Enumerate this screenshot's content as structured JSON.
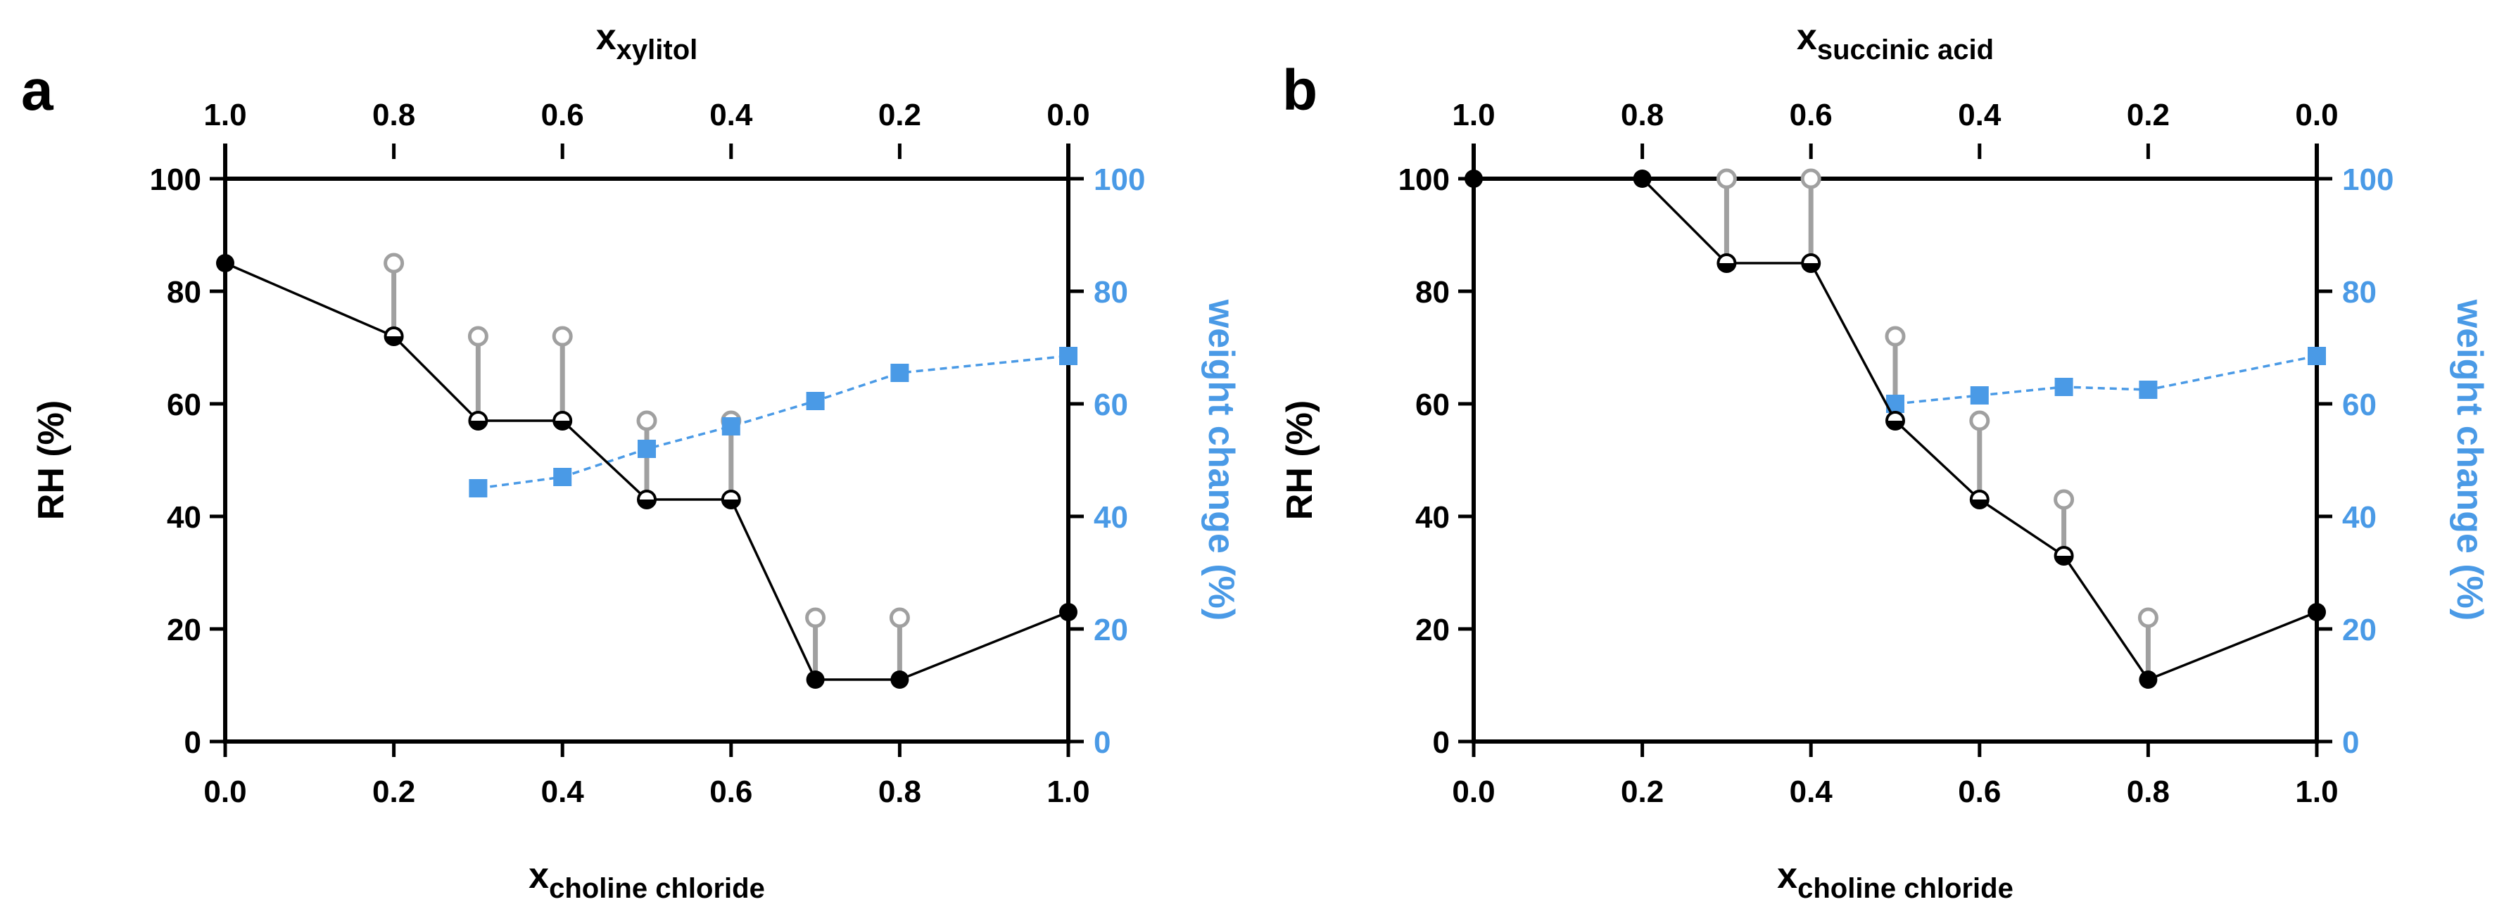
{
  "colors": {
    "black": "#000000",
    "blue": "#4a9ae6",
    "gray": "#a0a0a0"
  },
  "chart_data": [
    {
      "type": "line",
      "panel_label": "a",
      "top_axis": {
        "label_main": "x",
        "label_sub": "xylitol",
        "ticks": [
          "1.0",
          "0.8",
          "0.6",
          "0.4",
          "0.2",
          "0.0"
        ]
      },
      "bottom_axis": {
        "label_main": "x",
        "label_sub": "choline chloride",
        "ticks": [
          "0.0",
          "0.2",
          "0.4",
          "0.6",
          "0.8",
          "1.0"
        ],
        "xlim": [
          0,
          1
        ]
      },
      "left_axis": {
        "label": "RH (%)",
        "ticks": [
          "0",
          "20",
          "40",
          "60",
          "80",
          "100"
        ],
        "ylim": [
          0,
          100
        ]
      },
      "right_axis": {
        "label": "weight change (%)",
        "ticks": [
          "0",
          "20",
          "40",
          "60",
          "80",
          "100"
        ],
        "ylim": [
          0,
          100
        ]
      },
      "series": [
        {
          "name": "RH (deliquescence, filled)",
          "x": [
            0,
            0.2,
            0.3,
            0.4,
            0.5,
            0.6,
            0.7,
            0.8,
            1.0
          ],
          "values": [
            85,
            72,
            57,
            57,
            43,
            43,
            11,
            11,
            23
          ],
          "half_filled": [
            false,
            true,
            true,
            true,
            true,
            true,
            false,
            false,
            false
          ],
          "line": "step"
        },
        {
          "name": "RH upper bound (open)",
          "x": [
            0.2,
            0.3,
            0.4,
            0.5,
            0.6,
            0.7,
            0.8
          ],
          "values": [
            85,
            72,
            72,
            57,
            57,
            22,
            22
          ]
        },
        {
          "name": "weight change",
          "axis": "right",
          "x": [
            0.3,
            0.4,
            0.5,
            0.6,
            0.7,
            0.8,
            1.0
          ],
          "values": [
            45,
            47,
            52,
            56,
            60.5,
            65.5,
            68.5
          ]
        }
      ]
    },
    {
      "type": "line",
      "panel_label": "b",
      "top_axis": {
        "label_main": "x",
        "label_sub": "succinic acid",
        "ticks": [
          "1.0",
          "0.8",
          "0.6",
          "0.4",
          "0.2",
          "0.0"
        ]
      },
      "bottom_axis": {
        "label_main": "x",
        "label_sub": "choline chloride",
        "ticks": [
          "0.0",
          "0.2",
          "0.4",
          "0.6",
          "0.8",
          "1.0"
        ],
        "xlim": [
          0,
          1
        ]
      },
      "left_axis": {
        "label": "RH (%)",
        "ticks": [
          "0",
          "20",
          "40",
          "60",
          "80",
          "100"
        ],
        "ylim": [
          0,
          100
        ]
      },
      "right_axis": {
        "label": "weight change (%)",
        "ticks": [
          "0",
          "20",
          "40",
          "60",
          "80",
          "100"
        ],
        "ylim": [
          0,
          100
        ]
      },
      "series": [
        {
          "name": "RH (deliquescence, filled)",
          "x": [
            0,
            0.2,
            0.3,
            0.4,
            0.5,
            0.6,
            0.7,
            0.8,
            1.0
          ],
          "values": [
            100,
            100,
            85,
            85,
            57,
            43,
            33,
            11,
            23
          ],
          "half_filled": [
            false,
            false,
            true,
            true,
            true,
            true,
            true,
            false,
            false
          ],
          "line": "straight"
        },
        {
          "name": "RH upper bound (open)",
          "x": [
            0.3,
            0.4,
            0.5,
            0.6,
            0.7,
            0.8
          ],
          "values": [
            100,
            100,
            72,
            57,
            43,
            22
          ]
        },
        {
          "name": "weight change",
          "axis": "right",
          "x": [
            0.5,
            0.6,
            0.7,
            0.8,
            1.0
          ],
          "values": [
            60,
            61.5,
            63,
            62.5,
            68.5
          ]
        }
      ]
    }
  ]
}
